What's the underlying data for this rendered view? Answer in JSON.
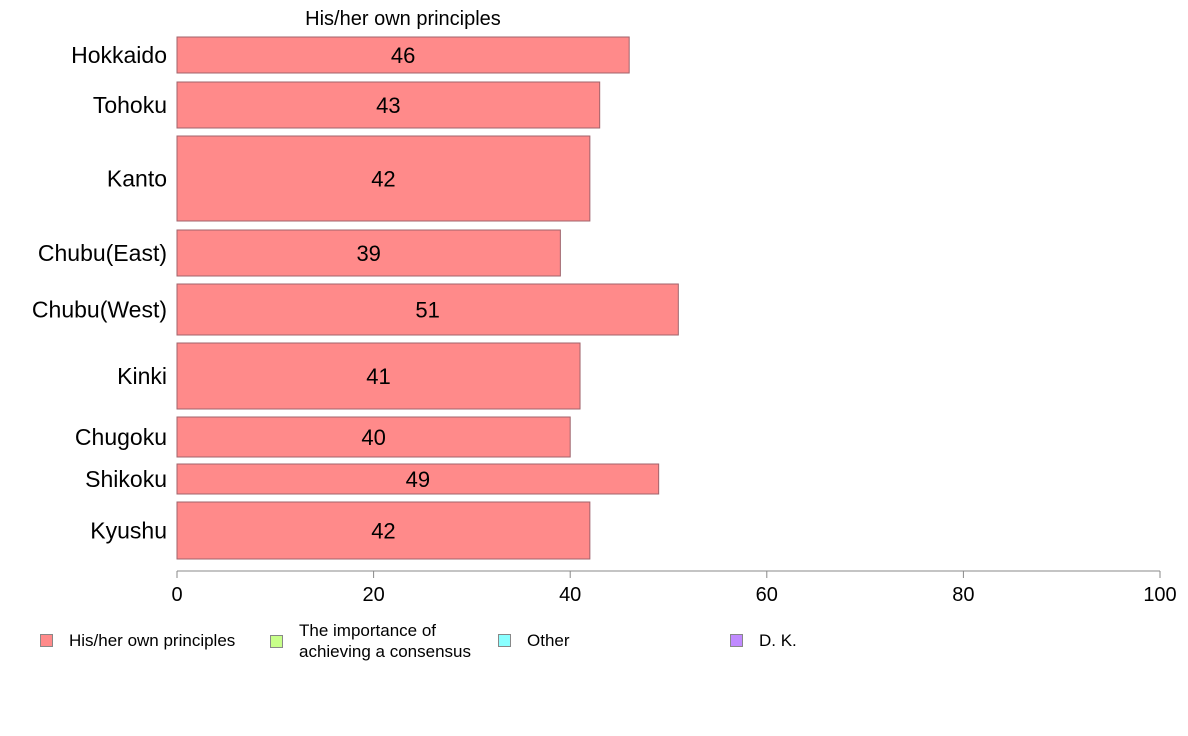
{
  "chart_data": {
    "type": "bar",
    "orientation": "horizontal",
    "title": "His/her own principles",
    "categories": [
      "Hokkaido",
      "Tohoku",
      "Kanto",
      "Chubu(East)",
      "Chubu(West)",
      "Kinki",
      "Chugoku",
      "Shikoku",
      "Kyushu"
    ],
    "series": [
      {
        "name": "His/her own principles",
        "color": "#ff8a8a",
        "values": [
          46,
          43,
          42,
          39,
          51,
          41,
          40,
          49,
          42
        ],
        "data_labels": [
          "46",
          "43",
          "42",
          "39",
          "51",
          "41",
          "40",
          "49",
          "42"
        ]
      }
    ],
    "xlim": [
      0,
      100
    ],
    "xticks": [
      "0",
      "20",
      "40",
      "60",
      "80",
      "100"
    ],
    "grid": false,
    "legend_position": "bottom",
    "legend": [
      {
        "label": "His/her own principles",
        "color": "#ff8a8a"
      },
      {
        "label": "The importance of achieving a consensus",
        "color": "#c8ff8a"
      },
      {
        "label": "Other",
        "color": "#8affff"
      },
      {
        "label": "D. K.",
        "color": "#c08aff"
      }
    ]
  }
}
